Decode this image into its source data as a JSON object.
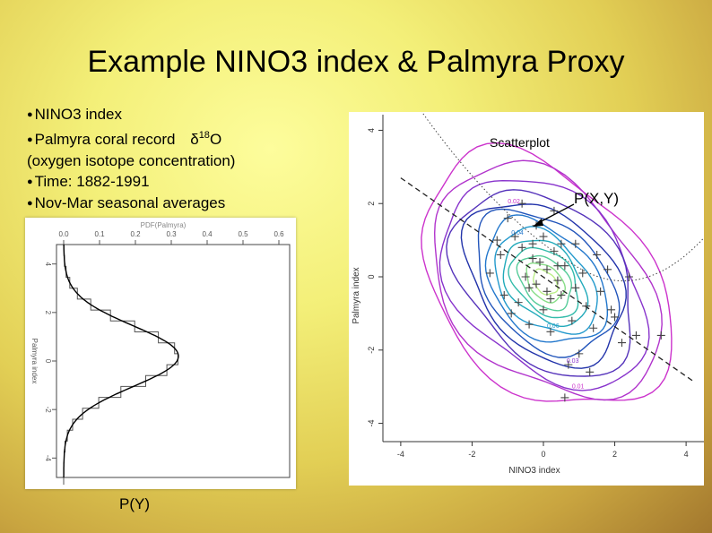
{
  "slide": {
    "title": "Example NINO3 index & Palmyra  Proxy",
    "bullets": {
      "b1": "NINO3 index",
      "b2_prefix": "Palmyra coral record ",
      "b2_symbol": "δ",
      "b2_sup": "18",
      "b2_suffix": "O",
      "b2_cont": "(oxygen isotope concentration)",
      "b3": "Time: 1882-1991",
      "b4": "Nov-Mar seasonal averages"
    },
    "captions": {
      "py": "P(Y)",
      "scatterplot": "Scatterplot",
      "pxy": "P(X,Y)"
    }
  },
  "pdf_chart": {
    "type": "line",
    "title": "PDF(Palmyra)",
    "ylabel": "Palmyra index",
    "x_ticks": [
      "0.0",
      "0.1",
      "0.2",
      "0.3",
      "0.4",
      "0.5",
      "0.6"
    ],
    "y_ticks": [
      "4",
      "2",
      "0",
      "-2",
      "-4"
    ]
  },
  "scatter_chart": {
    "type": "scatter",
    "xlabel": "NINO3 index",
    "ylabel": "Palmyra index",
    "x_ticks": [
      "-4",
      "-2",
      "0",
      "2",
      "4"
    ],
    "y_ticks": [
      "4",
      "2",
      "0",
      "-2",
      "-4"
    ],
    "xlim": [
      -4.5,
      4.5
    ],
    "ylim": [
      -4.5,
      4.5
    ],
    "contour_labels": [
      "0.02",
      "0.04",
      "0.06",
      "0.03",
      "0.01"
    ]
  },
  "chart_data": {
    "type": "scatter",
    "x": [
      -0.3,
      0.1,
      -0.6,
      0.4,
      -0.1,
      0.3,
      -0.4,
      0.2,
      0.6,
      -0.8,
      -0.2,
      0.0,
      0.5,
      -0.5,
      0.9,
      -1.0,
      1.2,
      -1.2,
      0.8,
      -0.7,
      1.5,
      1.8,
      -1.5,
      2.2,
      2.6,
      3.3,
      1.0,
      1.4,
      0.7,
      -0.9,
      -1.3,
      0.3,
      1.1,
      -0.4,
      2.0,
      1.6,
      0.2,
      -0.6,
      0.0,
      1.3,
      0.5,
      -1.1,
      0.9,
      1.9,
      -0.2,
      0.4,
      0.1,
      -0.3,
      2.4,
      0.6
    ],
    "y": [
      0.5,
      0.2,
      0.8,
      -0.1,
      0.4,
      0.7,
      -0.3,
      -0.6,
      0.3,
      1.1,
      1.4,
      -0.9,
      -0.5,
      0.0,
      0.9,
      1.6,
      -0.8,
      0.6,
      -1.2,
      -0.7,
      0.6,
      0.2,
      0.1,
      -1.8,
      -1.6,
      -1.6,
      -2.1,
      -1.4,
      -2.4,
      -1.0,
      1.0,
      1.8,
      0.1,
      -1.3,
      -1.1,
      -0.4,
      -1.5,
      2.0,
      1.1,
      -2.6,
      0.9,
      -0.5,
      -0.3,
      -0.9,
      -0.2,
      0.3,
      -0.4,
      0.9,
      0.0,
      -3.3
    ]
  }
}
